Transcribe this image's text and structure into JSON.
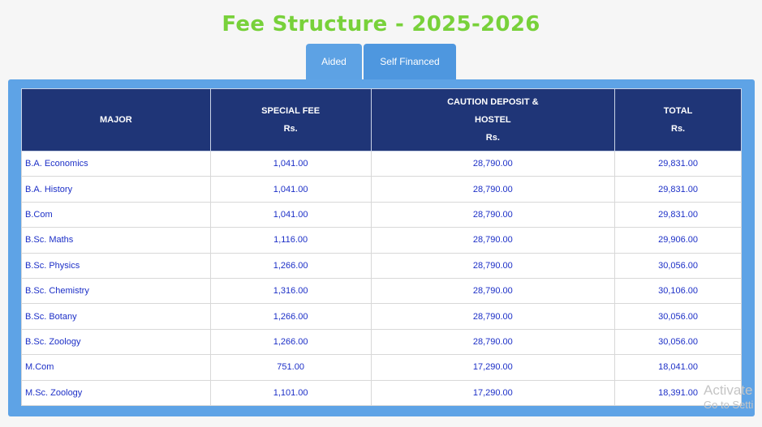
{
  "title": "Fee Structure - 2025-2026",
  "tabs": {
    "aided": "Aided",
    "self_financed": "Self Financed"
  },
  "table": {
    "headers": {
      "major": "MAJOR",
      "special_fee_line1": "SPECIAL FEE",
      "special_fee_line2": "Rs.",
      "caution_line1": "CAUTION DEPOSIT &",
      "caution_line2": "HOSTEL",
      "caution_line3": "Rs.",
      "total_line1": "TOTAL",
      "total_line2": "Rs."
    },
    "rows": [
      {
        "major": "B.A. Economics",
        "special_fee": "1,041.00",
        "caution": "28,790.00",
        "total": "29,831.00"
      },
      {
        "major": "B.A. History",
        "special_fee": "1,041.00",
        "caution": "28,790.00",
        "total": "29,831.00"
      },
      {
        "major": "B.Com",
        "special_fee": "1,041.00",
        "caution": "28,790.00",
        "total": "29,831.00"
      },
      {
        "major": "B.Sc. Maths",
        "special_fee": "1,116.00",
        "caution": "28,790.00",
        "total": "29,906.00"
      },
      {
        "major": "B.Sc. Physics",
        "special_fee": "1,266.00",
        "caution": "28,790.00",
        "total": "30,056.00"
      },
      {
        "major": "B.Sc. Chemistry",
        "special_fee": "1,316.00",
        "caution": "28,790.00",
        "total": "30,106.00"
      },
      {
        "major": "B.Sc. Botany",
        "special_fee": "1,266.00",
        "caution": "28,790.00",
        "total": "30,056.00"
      },
      {
        "major": "B.Sc. Zoology",
        "special_fee": "1,266.00",
        "caution": "28,790.00",
        "total": "30,056.00"
      },
      {
        "major": "M.Com",
        "special_fee": "751.00",
        "caution": "17,290.00",
        "total": "18,041.00"
      },
      {
        "major": "M.Sc. Zoology",
        "special_fee": "1,101.00",
        "caution": "17,290.00",
        "total": "18,391.00"
      }
    ]
  },
  "watermark": {
    "line1": "Activate",
    "line2": "Go to Setti"
  },
  "colors": {
    "title": "#78d13a",
    "tab": "#5aa0e3",
    "panel": "#5ea3e6",
    "header": "#1f3577",
    "cell_text": "#1c2fc7"
  }
}
